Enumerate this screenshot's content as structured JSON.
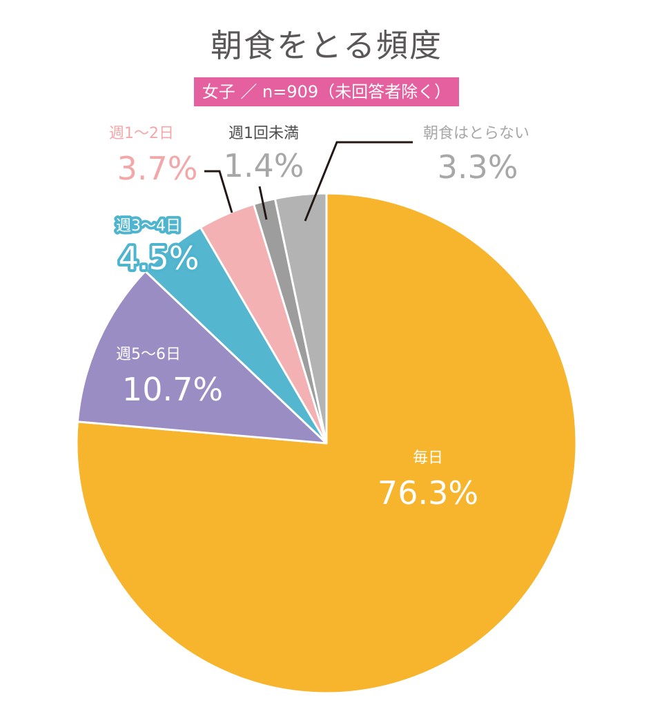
{
  "header": {
    "title": "朝食をとる頻度",
    "subtitle": "女子 ／ n=909（未回答者除く）"
  },
  "colors": {
    "title_text": "#595757",
    "subtitle_bg": "#e5609e",
    "label_dark": "#4d4d4d",
    "label_gray": "#a7a7a7",
    "label_pink": "#f2a8a8",
    "halo_blue": "#4fb4cd"
  },
  "chart_data": {
    "type": "pie",
    "title": "朝食をとる頻度",
    "subtitle": "女子 ／ n=909（未回答者除く）",
    "start": "12 o'clock",
    "direction": "clockwise",
    "slices": [
      {
        "label": "毎日",
        "value": 76.3,
        "value_label": "76.3%",
        "color": "#f6b52c",
        "label_position": "inside"
      },
      {
        "label": "週5～6日",
        "value": 10.7,
        "value_label": "10.7%",
        "color": "#9a8dc4",
        "label_position": "inside"
      },
      {
        "label": "週3～4日",
        "value": 4.5,
        "value_label": "4.5%",
        "color": "#55b6cf",
        "label_position": "outside-left"
      },
      {
        "label": "週1～2日",
        "value": 3.7,
        "value_label": "3.7%",
        "color": "#f4b1b4",
        "label_position": "outside-top"
      },
      {
        "label": "週1回未満",
        "value": 1.4,
        "value_label": "1.4%",
        "color": "#9d9d9d",
        "label_position": "outside-top"
      },
      {
        "label": "朝食はとらない",
        "value": 3.3,
        "value_label": "3.3%",
        "color": "#b3b3b3",
        "label_position": "outside-top"
      }
    ]
  }
}
